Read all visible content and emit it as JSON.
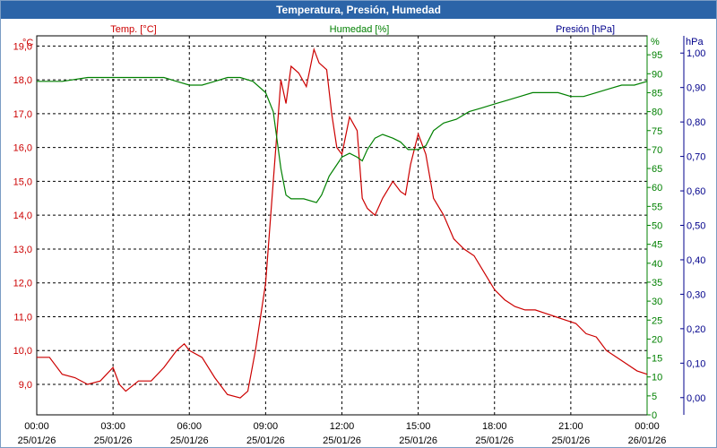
{
  "window": {
    "title": "Temperatura, Presión, Humedad"
  },
  "chart_data": {
    "type": "line",
    "title": "Temperatura, Presión, Humedad",
    "colors": {
      "temp": "#cc0000",
      "hum": "#008000",
      "pres": "#00008b",
      "grid": "#000000"
    },
    "x": {
      "range": [
        "2026-01-25 00:00",
        "2026-01-26 00:00"
      ],
      "tick_hours": [
        0,
        3,
        6,
        9,
        12,
        15,
        18,
        21,
        24
      ],
      "tick_times": [
        "00:00",
        "03:00",
        "06:00",
        "09:00",
        "12:00",
        "15:00",
        "18:00",
        "21:00",
        "00:00"
      ],
      "tick_dates": [
        "25/01/26",
        "25/01/26",
        "25/01/26",
        "25/01/26",
        "25/01/26",
        "25/01/26",
        "25/01/26",
        "25/01/26",
        "26/01/26"
      ]
    },
    "axes": {
      "temp": {
        "label": "Temp. [°C]",
        "unit": "°C",
        "range": [
          8.1,
          19.3
        ],
        "ticks": [
          "19,0",
          "18,0",
          "17,0",
          "16,0",
          "15,0",
          "14,0",
          "13,0",
          "12,0",
          "11,0",
          "10,0",
          "9,0"
        ],
        "tick_values": [
          19,
          18,
          17,
          16,
          15,
          14,
          13,
          12,
          11,
          10,
          9
        ]
      },
      "hum": {
        "label": "Humedad [%]",
        "unit": "%",
        "range": [
          0,
          100
        ],
        "ticks": [
          "95",
          "90",
          "85",
          "80",
          "75",
          "70",
          "65",
          "60",
          "55",
          "50",
          "45",
          "40",
          "35",
          "30",
          "25",
          "20",
          "15",
          "10",
          "5",
          "0"
        ],
        "tick_values": [
          95,
          90,
          85,
          80,
          75,
          70,
          65,
          60,
          55,
          50,
          45,
          40,
          35,
          30,
          25,
          20,
          15,
          10,
          5,
          0
        ]
      },
      "pres": {
        "label": "Presión [hPa]",
        "unit": "hPa",
        "range": [
          -0.05,
          1.05
        ],
        "ticks": [
          "1,00",
          "0,90",
          "0,80",
          "0,70",
          "0,60",
          "0,50",
          "0,40",
          "0,30",
          "0,20",
          "0,10",
          "0,00"
        ],
        "tick_values": [
          1.0,
          0.9,
          0.8,
          0.7,
          0.6,
          0.5,
          0.4,
          0.3,
          0.2,
          0.1,
          0.0
        ]
      }
    },
    "grid": true,
    "series": [
      {
        "name": "Temp. [°C]",
        "axis": "temp",
        "x": [
          0,
          0.5,
          1,
          1.5,
          2,
          2.5,
          3,
          3.25,
          3.5,
          4,
          4.5,
          5,
          5.5,
          5.8,
          6,
          6.5,
          7,
          7.5,
          8,
          8.3,
          8.6,
          9,
          9.3,
          9.5,
          9.6,
          9.8,
          10,
          10.3,
          10.6,
          10.9,
          11.1,
          11.4,
          11.6,
          11.8,
          12,
          12.3,
          12.6,
          12.8,
          13,
          13.3,
          13.6,
          14,
          14.3,
          14.5,
          14.7,
          15,
          15.3,
          15.6,
          16,
          16.4,
          16.8,
          17.2,
          17.6,
          18,
          18.4,
          18.8,
          19.2,
          19.6,
          20,
          20.4,
          20.8,
          21.2,
          21.6,
          22,
          22.4,
          22.8,
          23.2,
          23.6,
          24
        ],
        "values": [
          9.8,
          9.8,
          9.3,
          9.2,
          9.0,
          9.1,
          9.5,
          9.0,
          8.8,
          9.1,
          9.1,
          9.5,
          10.0,
          10.2,
          10.0,
          9.8,
          9.2,
          8.7,
          8.6,
          8.8,
          10.0,
          12.0,
          15.0,
          17.0,
          18.0,
          17.3,
          18.4,
          18.2,
          17.8,
          18.9,
          18.5,
          18.3,
          17.0,
          16.0,
          15.8,
          16.9,
          16.5,
          14.5,
          14.2,
          14.0,
          14.5,
          15.0,
          14.7,
          14.6,
          15.5,
          16.4,
          15.8,
          14.5,
          14.0,
          13.3,
          13.0,
          12.8,
          12.3,
          11.8,
          11.5,
          11.3,
          11.2,
          11.2,
          11.1,
          11.0,
          10.9,
          10.8,
          10.5,
          10.4,
          10.0,
          9.8,
          9.6,
          9.4,
          9.3
        ]
      },
      {
        "name": "Humedad [%]",
        "axis": "hum",
        "x": [
          0,
          1,
          2,
          3,
          4,
          5,
          5.5,
          6,
          6.5,
          7,
          7.5,
          8,
          8.5,
          9,
          9.3,
          9.6,
          9.8,
          10,
          10.5,
          11,
          11.2,
          11.5,
          12,
          12.3,
          12.6,
          12.8,
          13,
          13.3,
          13.6,
          14,
          14.3,
          14.6,
          15,
          15.3,
          15.6,
          16,
          16.5,
          17,
          17.5,
          18,
          18.5,
          19,
          19.5,
          20,
          20.5,
          21,
          21.5,
          22,
          22.5,
          23,
          23.5,
          24
        ],
        "values": [
          88,
          88,
          89,
          89,
          89,
          89,
          88,
          87,
          87,
          88,
          89,
          89,
          88,
          85,
          80,
          65,
          58,
          57,
          57,
          56,
          58,
          63,
          68,
          69,
          68,
          67,
          70,
          73,
          74,
          73,
          72,
          70,
          70,
          71,
          75,
          77,
          78,
          80,
          81,
          82,
          83,
          84,
          85,
          85,
          85,
          84,
          84,
          85,
          86,
          87,
          87,
          88
        ]
      },
      {
        "name": "Presión [hPa]",
        "axis": "pres",
        "x": [],
        "values": []
      }
    ]
  }
}
